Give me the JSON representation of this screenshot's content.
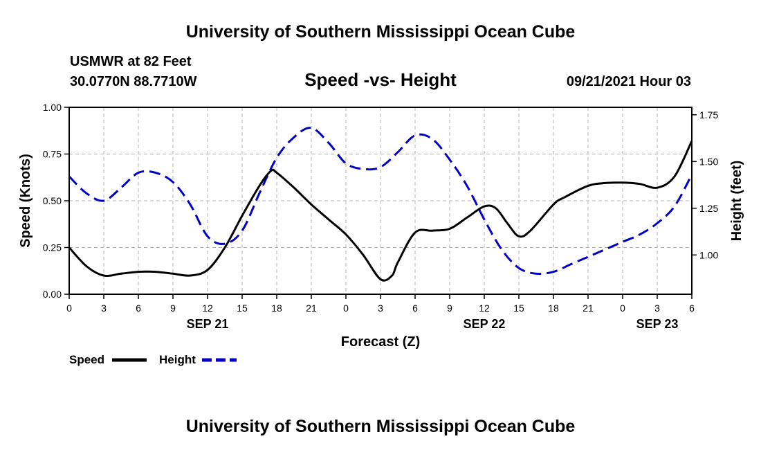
{
  "header": {
    "title": "University of Southern Mississippi Ocean Cube",
    "station": "USMWR at 82 Feet",
    "coords": "30.0770N  88.7710W",
    "datetime": "09/21/2021 Hour 03",
    "footer_title": "University of Southern Mississippi Ocean Cube"
  },
  "chart_data": {
    "type": "line",
    "title": "Speed -vs- Height",
    "xlabel": "Forecast (Z)",
    "ylabel": "Speed (Knots)",
    "y2label": "Height (feet)",
    "x_range_hours": [
      0,
      54
    ],
    "ylim": [
      0,
      1.0
    ],
    "y2lim": [
      0.79,
      1.79
    ],
    "grid": true,
    "legend": "bottom-left",
    "x_tick_labels": [
      "0",
      "3",
      "6",
      "9",
      "12",
      "15",
      "18",
      "21",
      "0",
      "3",
      "6",
      "9",
      "12",
      "15",
      "18",
      "21",
      "0",
      "3",
      "6"
    ],
    "y_tick_labels": [
      "0.00",
      "0.25",
      "0.50",
      "0.75",
      "1.00"
    ],
    "y2_tick_values": [
      1.0,
      1.25,
      1.5,
      1.75
    ],
    "y2_tick_labels": [
      "1.00",
      "1.25",
      "1.50",
      "1.75"
    ],
    "date_labels": [
      {
        "hour": 12,
        "label": "SEP 21"
      },
      {
        "hour": 36,
        "label": "SEP 22"
      },
      {
        "hour": 51,
        "label": "SEP 23"
      }
    ],
    "series": [
      {
        "name": "Speed",
        "axis": "left",
        "color": "#000000",
        "style": "solid",
        "x": [
          0,
          1.5,
          3,
          4.5,
          6,
          7.5,
          9,
          10.5,
          12,
          13.5,
          15,
          16.5,
          17.5,
          18,
          19.5,
          21,
          22.5,
          24,
          25.5,
          27,
          28,
          28.5,
          30,
          31.5,
          33,
          34.5,
          36,
          37,
          38,
          39,
          40,
          42,
          43,
          45,
          46.5,
          48,
          49.5,
          51,
          52.5,
          54
        ],
        "values": [
          0.25,
          0.15,
          0.1,
          0.11,
          0.12,
          0.12,
          0.11,
          0.1,
          0.13,
          0.25,
          0.42,
          0.58,
          0.66,
          0.65,
          0.57,
          0.48,
          0.4,
          0.32,
          0.21,
          0.08,
          0.1,
          0.17,
          0.33,
          0.34,
          0.35,
          0.41,
          0.47,
          0.46,
          0.38,
          0.31,
          0.34,
          0.48,
          0.52,
          0.58,
          0.595,
          0.597,
          0.59,
          0.57,
          0.63,
          0.82
        ]
      },
      {
        "name": "Height",
        "axis": "right",
        "color": "#0000c8",
        "style": "dashed",
        "x": [
          0,
          1.5,
          3,
          4.5,
          6,
          7.5,
          9,
          10.5,
          12,
          13.5,
          15,
          16.5,
          18,
          19.5,
          21,
          22.5,
          24,
          25.5,
          27,
          28.5,
          30,
          31.5,
          33,
          34.5,
          36,
          37.5,
          39,
          40.5,
          42,
          43.5,
          45,
          46.5,
          48,
          49.5,
          51,
          52.5,
          54
        ],
        "values": [
          1.42,
          1.33,
          1.29,
          1.36,
          1.44,
          1.44,
          1.39,
          1.27,
          1.1,
          1.06,
          1.13,
          1.33,
          1.52,
          1.63,
          1.68,
          1.6,
          1.49,
          1.46,
          1.47,
          1.55,
          1.64,
          1.62,
          1.51,
          1.37,
          1.19,
          1.03,
          0.93,
          0.9,
          0.91,
          0.95,
          0.99,
          1.03,
          1.07,
          1.11,
          1.17,
          1.26,
          1.43
        ]
      }
    ]
  }
}
